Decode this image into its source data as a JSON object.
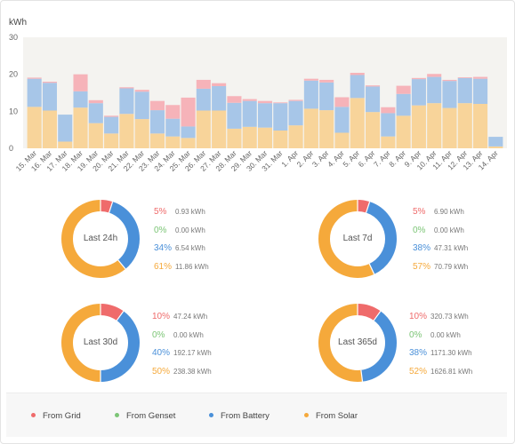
{
  "chart_data": [
    {
      "type": "bar",
      "stacked": true,
      "ylabel": "kWh",
      "ylim": [
        0,
        30
      ],
      "yticks": [
        0,
        10,
        20,
        30
      ],
      "categories": [
        "15. Mar",
        "16. Mar",
        "17. Mar",
        "18. Mar",
        "19. Mar",
        "20. Mar",
        "21. Mar",
        "22. Mar",
        "23. Mar",
        "24. Mar",
        "25. Mar",
        "26. Mar",
        "27. Mar",
        "28. Mar",
        "29. Mar",
        "30. Mar",
        "31. Mar",
        "1. Apr",
        "2. Apr",
        "3. Apr",
        "4. Apr",
        "5. Apr",
        "6. Apr",
        "7. Apr",
        "8. Apr",
        "9. Apr",
        "10. Apr",
        "11. Apr",
        "12. Apr",
        "13. Apr",
        "14. Apr"
      ],
      "series": [
        {
          "name": "From Solar",
          "color": "#f8d49a",
          "values": [
            11.2,
            10.2,
            1.8,
            11.0,
            6.8,
            4.0,
            9.3,
            7.9,
            4.0,
            3.2,
            2.8,
            10.2,
            10.2,
            5.3,
            5.8,
            5.6,
            4.8,
            6.2,
            10.7,
            10.3,
            4.2,
            13.6,
            9.8,
            3.2,
            8.8,
            11.6,
            12.2,
            10.9,
            12.2,
            12.0,
            0.5
          ]
        },
        {
          "name": "From Battery",
          "color": "#a7c6e8",
          "values": [
            7.6,
            7.5,
            7.3,
            4.4,
            5.4,
            4.5,
            6.9,
            7.4,
            6.3,
            4.8,
            3.1,
            5.9,
            6.6,
            7.0,
            7.0,
            6.6,
            7.4,
            6.6,
            7.6,
            7.5,
            7.0,
            6.2,
            6.9,
            6.3,
            5.9,
            7.1,
            7.1,
            7.3,
            6.8,
            6.8,
            2.6
          ]
        },
        {
          "name": "From Genset",
          "color": "#8fd18f",
          "values": [
            0,
            0,
            0,
            0,
            0,
            0,
            0,
            0,
            0,
            0,
            0,
            0,
            0,
            0,
            0,
            0,
            0,
            0,
            0,
            0,
            0,
            0,
            0,
            0,
            0,
            0,
            0,
            0,
            0,
            0,
            0
          ]
        },
        {
          "name": "From Grid",
          "color": "#f6b3b9",
          "values": [
            0.3,
            0.3,
            0,
            4.6,
            0.8,
            0.3,
            0.3,
            0.5,
            2.5,
            3.7,
            7.8,
            2.4,
            0.8,
            1.8,
            0.5,
            0.6,
            0.2,
            0.3,
            0.5,
            0.7,
            2.6,
            0.6,
            0.3,
            1.6,
            2.2,
            0.3,
            0.8,
            0.3,
            0.2,
            0.5,
            0
          ]
        }
      ]
    },
    {
      "type": "pie",
      "donut": true,
      "center_label": "Last 24h",
      "slices": [
        {
          "name": "From Grid",
          "pct": "5%",
          "kwh": "0.93 kWh",
          "value": 5
        },
        {
          "name": "From Genset",
          "pct": "0%",
          "kwh": "0.00 kWh",
          "value": 0
        },
        {
          "name": "From Battery",
          "pct": "34%",
          "kwh": "6.54 kWh",
          "value": 34
        },
        {
          "name": "From Solar",
          "pct": "61%",
          "kwh": "11.86 kWh",
          "value": 61
        }
      ]
    },
    {
      "type": "pie",
      "donut": true,
      "center_label": "Last 7d",
      "slices": [
        {
          "name": "From Grid",
          "pct": "5%",
          "kwh": "6.90 kWh",
          "value": 5
        },
        {
          "name": "From Genset",
          "pct": "0%",
          "kwh": "0.00 kWh",
          "value": 0
        },
        {
          "name": "From Battery",
          "pct": "38%",
          "kwh": "47.31 kWh",
          "value": 38
        },
        {
          "name": "From Solar",
          "pct": "57%",
          "kwh": "70.79 kWh",
          "value": 57
        }
      ]
    },
    {
      "type": "pie",
      "donut": true,
      "center_label": "Last 30d",
      "slices": [
        {
          "name": "From Grid",
          "pct": "10%",
          "kwh": "47.24 kWh",
          "value": 10
        },
        {
          "name": "From Genset",
          "pct": "0%",
          "kwh": "0.00 kWh",
          "value": 0
        },
        {
          "name": "From Battery",
          "pct": "40%",
          "kwh": "192.17 kWh",
          "value": 40
        },
        {
          "name": "From Solar",
          "pct": "50%",
          "kwh": "238.38 kWh",
          "value": 50
        }
      ]
    },
    {
      "type": "pie",
      "donut": true,
      "center_label": "Last 365d",
      "slices": [
        {
          "name": "From Grid",
          "pct": "10%",
          "kwh": "320.73 kWh",
          "value": 10
        },
        {
          "name": "From Genset",
          "pct": "0%",
          "kwh": "0.00 kWh",
          "value": 0
        },
        {
          "name": "From Battery",
          "pct": "38%",
          "kwh": "1171.30 kWh",
          "value": 38
        },
        {
          "name": "From Solar",
          "pct": "52%",
          "kwh": "1626.81 kWh",
          "value": 52
        }
      ]
    }
  ],
  "colors": {
    "grid": "#ef6b6b",
    "genset": "#7cc576",
    "battery": "#4a90d9",
    "solar": "#f5a93b"
  },
  "legend": [
    {
      "label": "From Grid",
      "color": "#ef6b6b"
    },
    {
      "label": "From Genset",
      "color": "#7cc576"
    },
    {
      "label": "From Battery",
      "color": "#4a90d9"
    },
    {
      "label": "From Solar",
      "color": "#f5a93b"
    }
  ]
}
